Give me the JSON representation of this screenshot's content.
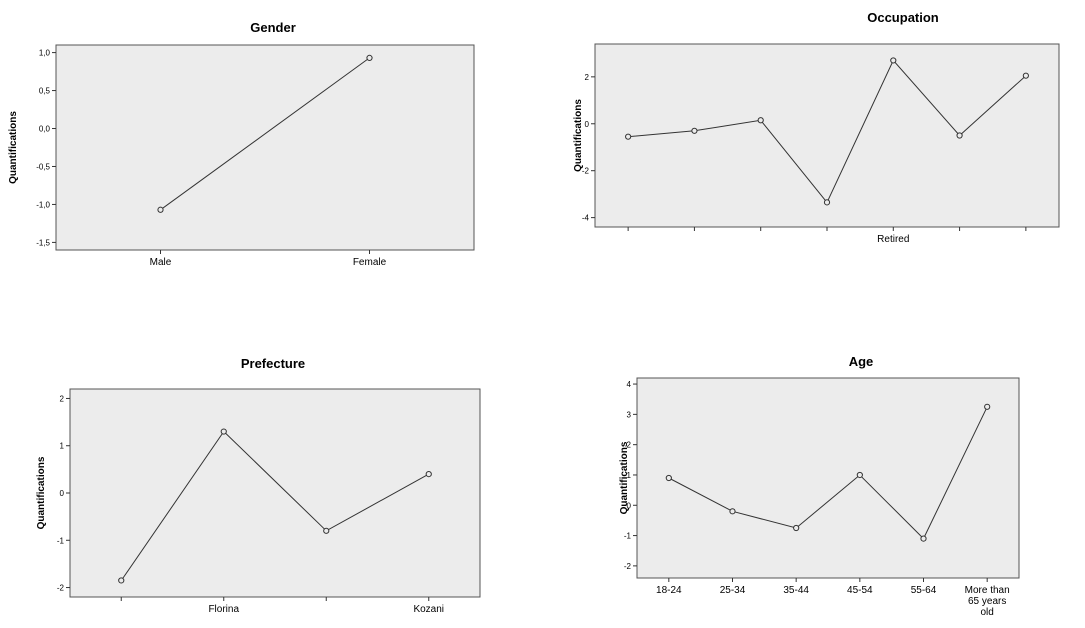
{
  "chart_data": [
    {
      "type": "line",
      "title": "Gender",
      "ylabel": "Quantifications",
      "xlabel": "",
      "categories": [
        "Male",
        "Female"
      ],
      "category_labels": [
        "Male",
        "Female"
      ],
      "values": [
        -1.07,
        0.93
      ],
      "ylim": [
        -1.6,
        1.1
      ],
      "yticks": [
        -1.5,
        -1.0,
        -0.5,
        0.0,
        0.5,
        1.0
      ],
      "ytick_labels": [
        "-1,5",
        "-1,0",
        "-0,5",
        "0,0",
        "0,5",
        "1,0"
      ],
      "grid": false
    },
    {
      "type": "line",
      "title": "Occupation",
      "ylabel": "Quantifications",
      "xlabel": "",
      "categories": [
        "",
        "",
        "",
        "",
        "Retired",
        "",
        ""
      ],
      "category_labels": [
        "",
        "",
        "",
        "",
        "Retired",
        "",
        ""
      ],
      "values": [
        -0.55,
        -0.3,
        0.15,
        -3.35,
        2.7,
        -0.5,
        2.05
      ],
      "ylim": [
        -4.4,
        3.4
      ],
      "yticks": [
        -4,
        -2,
        0,
        2
      ],
      "ytick_labels": [
        "-4",
        "-2",
        "0",
        "2"
      ],
      "grid": false
    },
    {
      "type": "line",
      "title": "Prefecture",
      "ylabel": "Quantifications",
      "xlabel": "",
      "categories": [
        "",
        "Florina",
        "",
        "Kozani"
      ],
      "category_labels": [
        "",
        "Florina",
        "",
        "Kozani"
      ],
      "values": [
        -1.85,
        1.3,
        -0.8,
        0.4
      ],
      "ylim": [
        -2.2,
        2.2
      ],
      "yticks": [
        -2,
        -1,
        0,
        1,
        2
      ],
      "ytick_labels": [
        "-2",
        "-1",
        "0",
        "1",
        "2"
      ],
      "grid": false
    },
    {
      "type": "line",
      "title": "Age",
      "ylabel": "Quantifications",
      "xlabel": "",
      "categories": [
        "18-24",
        "25-34",
        "35-44",
        "45-54",
        "55-64",
        "More than 65 years old"
      ],
      "category_labels": [
        "18-24",
        "25-34",
        "35-44",
        "45-54",
        "55-64",
        "More than|65 years|old"
      ],
      "values": [
        0.9,
        -0.2,
        -0.75,
        1.0,
        -1.1,
        3.25
      ],
      "ylim": [
        -2.4,
        4.2
      ],
      "yticks": [
        -2,
        -1,
        0,
        1,
        2,
        3,
        4
      ],
      "ytick_labels": [
        "-2",
        "-1",
        "0",
        "1",
        "2",
        "3",
        "4"
      ],
      "grid": false
    }
  ]
}
